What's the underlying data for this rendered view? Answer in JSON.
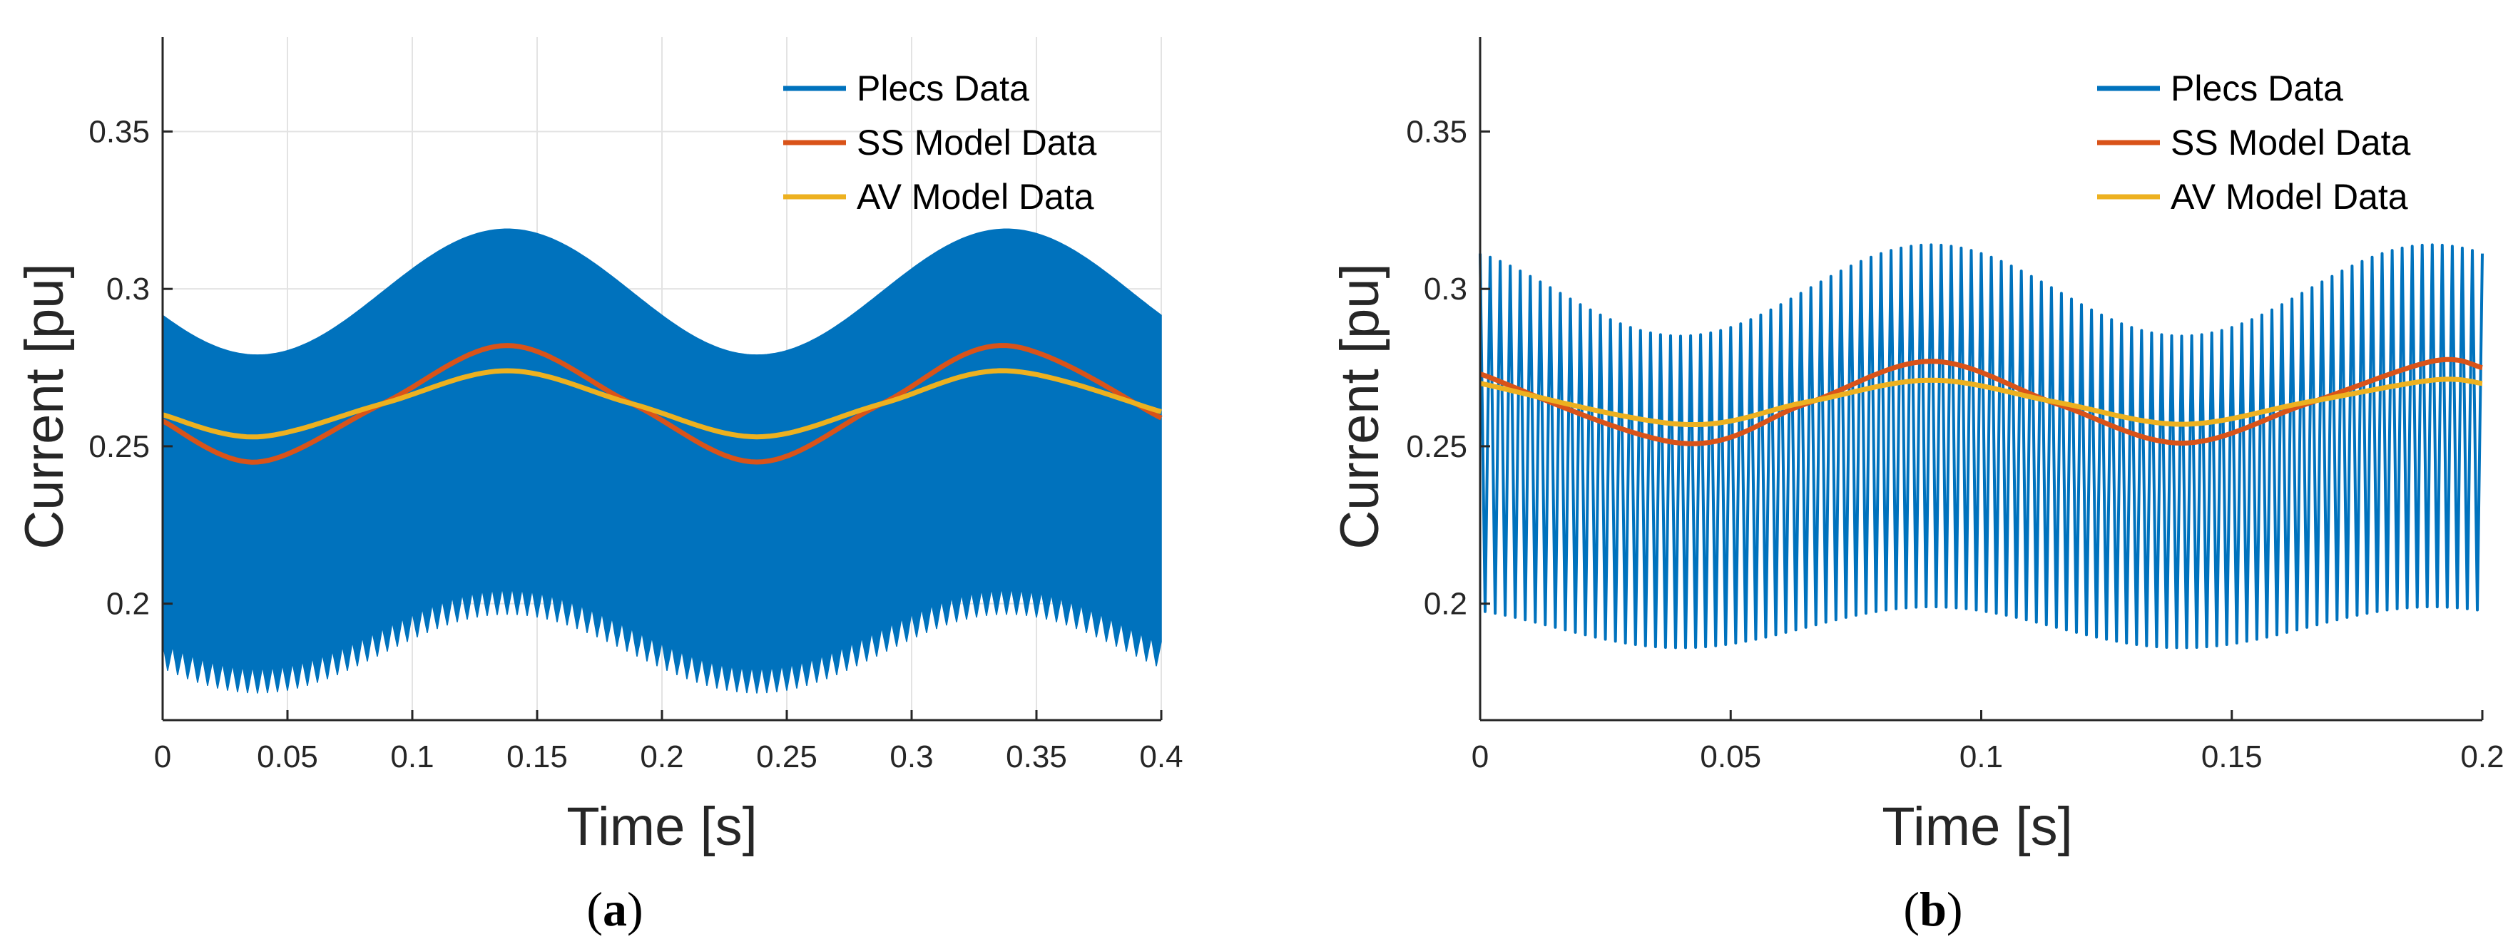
{
  "chart_data": [
    {
      "type": "line",
      "caption_letter": "a",
      "xlabel": "Time [s]",
      "ylabel": "Current [pu]",
      "xlim": [
        0,
        0.4
      ],
      "ylim": [
        0.163,
        0.38
      ],
      "xticks": [
        "0",
        "0.05",
        "0.1",
        "0.15",
        "0.2",
        "0.25",
        "0.3",
        "0.35",
        "0.4"
      ],
      "yticks": [
        "0.2",
        "0.25",
        "0.3",
        "0.35"
      ],
      "grid": true,
      "legend_position": "top-right",
      "series": [
        {
          "name": "Plecs Data",
          "color": "#0072bd",
          "style": "high-frequency ripple band",
          "upper_envelope": {
            "mean": 0.299,
            "amplitude": 0.02,
            "period": 0.2,
            "peak_at": 0.138
          },
          "lower_envelope": {
            "mean": 0.1925,
            "amplitude": 0.0125,
            "period": 0.2,
            "peak_at": 0.138
          },
          "switching_ripple_period": 0.004
        },
        {
          "name": "SS Model Data",
          "color": "#d95319",
          "x": [
            0,
            0.038,
            0.088,
            0.138,
            0.188,
            0.238,
            0.288,
            0.338,
            0.4
          ],
          "y": [
            0.258,
            0.245,
            0.2635,
            0.282,
            0.2635,
            0.245,
            0.2635,
            0.282,
            0.259
          ]
        },
        {
          "name": "AV Model Data",
          "color": "#edb120",
          "x": [
            0,
            0.038,
            0.088,
            0.138,
            0.188,
            0.238,
            0.288,
            0.338,
            0.4
          ],
          "y": [
            0.26,
            0.253,
            0.2635,
            0.274,
            0.2635,
            0.253,
            0.2635,
            0.274,
            0.261
          ]
        }
      ]
    },
    {
      "type": "line",
      "caption_letter": "b",
      "xlabel": "Time [s]",
      "ylabel": "Current [pu]",
      "xlim": [
        0,
        0.2
      ],
      "ylim": [
        0.163,
        0.38
      ],
      "xticks": [
        "0",
        "0.05",
        "0.1",
        "0.15",
        "0.2"
      ],
      "yticks": [
        "0.2",
        "0.25",
        "0.3",
        "0.35"
      ],
      "grid": false,
      "legend_position": "top-right",
      "series": [
        {
          "name": "Plecs Data",
          "color": "#0072bd",
          "style": "oscillating ripple",
          "upper_envelope": {
            "mean": 0.2995,
            "amplitude": 0.0145,
            "period": 0.1,
            "peak_at": 0.09
          },
          "lower_envelope": {
            "mean": 0.1925,
            "amplitude": 0.0065,
            "period": 0.1,
            "peak_at": 0.09
          },
          "switching_ripple_period": 0.002
        },
        {
          "name": "SS Model Data",
          "color": "#d95319",
          "x": [
            0,
            0.04,
            0.065,
            0.09,
            0.115,
            0.14,
            0.165,
            0.19,
            0.2
          ],
          "y": [
            0.273,
            0.251,
            0.2635,
            0.277,
            0.2635,
            0.251,
            0.2635,
            0.277,
            0.275
          ]
        },
        {
          "name": "AV Model Data",
          "color": "#edb120",
          "x": [
            0,
            0.04,
            0.065,
            0.09,
            0.115,
            0.14,
            0.165,
            0.19,
            0.2
          ],
          "y": [
            0.27,
            0.257,
            0.264,
            0.271,
            0.264,
            0.257,
            0.264,
            0.271,
            0.27
          ]
        }
      ]
    }
  ]
}
